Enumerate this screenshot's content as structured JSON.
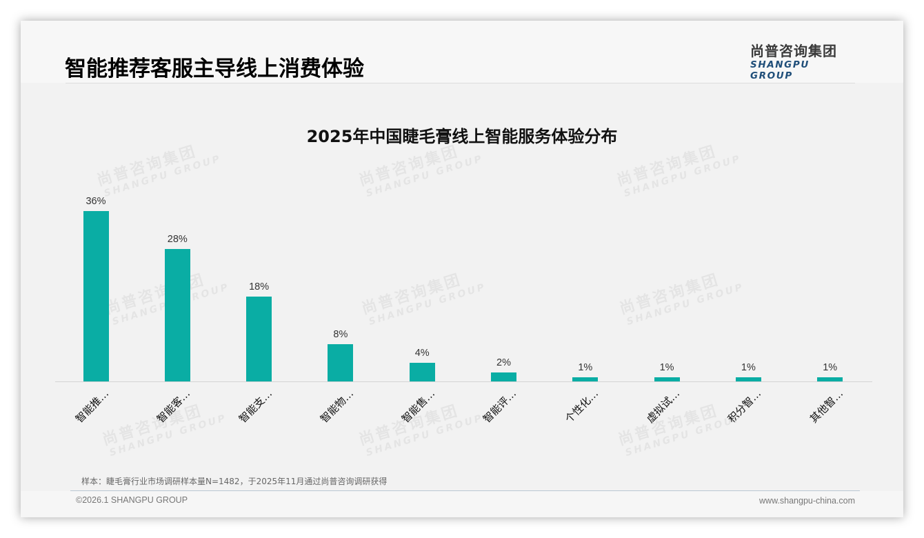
{
  "header": {
    "title": "智能推荐客服主导线上消费体验",
    "logo_cn": "尚普咨询集团",
    "logo_en": "SHANGPU GROUP"
  },
  "watermark": {
    "cn": "尚普咨询集团",
    "en": "SHANGPU GROUP"
  },
  "chart": {
    "title": "2025年中国睫毛膏线上智能服务体验分布"
  },
  "chart_data": {
    "type": "bar",
    "title": "2025年中国睫毛膏线上智能服务体验分布",
    "categories": [
      "智能推…",
      "智能客…",
      "智能支…",
      "智能物…",
      "智能售…",
      "智能评…",
      "个性化…",
      "虚拟试…",
      "积分智…",
      "其他智…"
    ],
    "values": [
      36,
      28,
      18,
      8,
      4,
      2,
      1,
      1,
      1,
      1
    ],
    "value_labels": [
      "36%",
      "28%",
      "18%",
      "8%",
      "4%",
      "2%",
      "1%",
      "1%",
      "1%",
      "1%"
    ],
    "unit": "%",
    "xlabel": "",
    "ylabel": "",
    "ylim": [
      0,
      40
    ],
    "grid": false,
    "legend": null,
    "bar_color": "#0aada4",
    "x_tick_rotation": -45
  },
  "footer": {
    "note": "样本：睫毛膏行业市场调研样本量N=1482，于2025年11月通过尚普咨询调研获得",
    "copyright": "©2026.1 SHANGPU GROUP",
    "website": "www.shangpu-china.com"
  }
}
